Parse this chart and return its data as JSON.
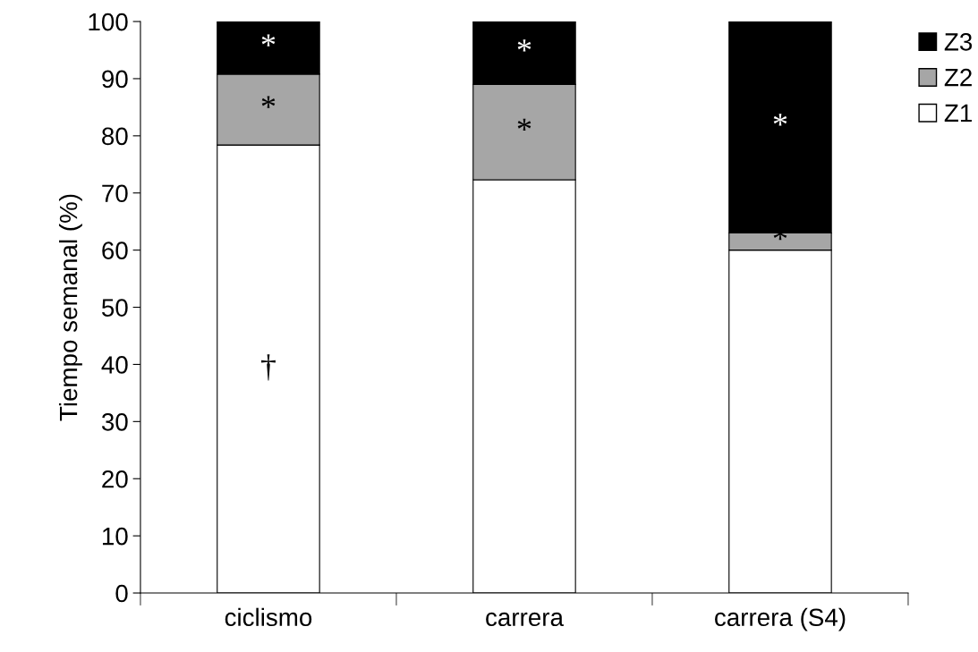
{
  "chart_data": {
    "type": "bar",
    "stacked": true,
    "ylabel": "Tiempo semanal (%)",
    "categories": [
      "ciclismo",
      "carrera",
      "carrera (S4)"
    ],
    "series": [
      {
        "name": "Z1",
        "color": "#ffffff",
        "values": [
          78.4,
          72.3,
          60
        ],
        "value_labels": [
          "†",
          null,
          null
        ]
      },
      {
        "name": "Z2",
        "color": "#a6a6a6",
        "values": [
          12.4,
          16.7,
          3
        ],
        "value_labels": [
          "*",
          "*",
          "*"
        ]
      },
      {
        "name": "Z3",
        "color": "#000000",
        "values": [
          9.2,
          11,
          37
        ],
        "value_labels": [
          "*",
          "*",
          "*"
        ]
      }
    ],
    "ylim": [
      0,
      100
    ],
    "yticks": [
      0,
      10,
      20,
      30,
      40,
      50,
      60,
      70,
      80,
      90,
      100
    ],
    "grid": false,
    "legend": "top right"
  }
}
